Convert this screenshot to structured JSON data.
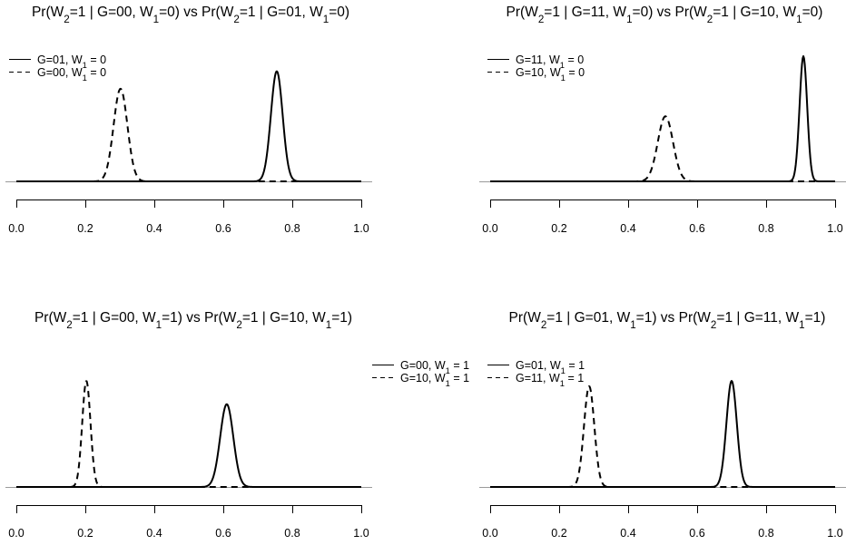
{
  "chart_data": [
    {
      "type": "line",
      "title_parts": [
        {
          "t": "Pr(W"
        },
        {
          "t": "2",
          "sub": true
        },
        {
          "t": "=1 | G=00, W"
        },
        {
          "t": "1",
          "sub": true
        },
        {
          "t": "=0) vs Pr(W"
        },
        {
          "t": "2",
          "sub": true
        },
        {
          "t": "=1 | G=01, W"
        },
        {
          "t": "1",
          "sub": true
        },
        {
          "t": "=0)"
        }
      ],
      "xlim": [
        0,
        1
      ],
      "x_ticks": [
        "0.0",
        "0.2",
        "0.4",
        "0.6",
        "0.8",
        "1.0"
      ],
      "legend_position": "top-left",
      "legend": [
        {
          "style": "solid",
          "parts": [
            {
              "t": "G=01, W"
            },
            {
              "t": "1",
              "sub": true
            },
            {
              "t": " = 0"
            }
          ]
        },
        {
          "style": "dashed",
          "parts": [
            {
              "t": "G=00, W"
            },
            {
              "t": "1",
              "sub": true
            },
            {
              "t": " = 0"
            }
          ]
        }
      ],
      "series": [
        {
          "style": "solid",
          "center": 0.755,
          "sd": 0.017,
          "peak": 0.88
        },
        {
          "style": "dashed",
          "center": 0.302,
          "sd": 0.02,
          "peak": 0.74
        }
      ]
    },
    {
      "type": "line",
      "title_parts": [
        {
          "t": "Pr(W"
        },
        {
          "t": "2",
          "sub": true
        },
        {
          "t": "=1 | G=11, W"
        },
        {
          "t": "1",
          "sub": true
        },
        {
          "t": "=0) vs Pr(W"
        },
        {
          "t": "2",
          "sub": true
        },
        {
          "t": "=1 | G=10, W"
        },
        {
          "t": "1",
          "sub": true
        },
        {
          "t": "=0)"
        }
      ],
      "xlim": [
        0,
        1
      ],
      "x_ticks": [
        "0.0",
        "0.2",
        "0.4",
        "0.6",
        "0.8",
        "1.0"
      ],
      "legend_position": "top-left",
      "legend": [
        {
          "style": "solid",
          "parts": [
            {
              "t": "G=11, W"
            },
            {
              "t": "1",
              "sub": true
            },
            {
              "t": " = 0"
            }
          ]
        },
        {
          "style": "dashed",
          "parts": [
            {
              "t": "G=10, W"
            },
            {
              "t": "1",
              "sub": true
            },
            {
              "t": " = 0"
            }
          ]
        }
      ],
      "series": [
        {
          "style": "solid",
          "center": 0.908,
          "sd": 0.011,
          "peak": 1.0
        },
        {
          "style": "dashed",
          "center": 0.508,
          "sd": 0.022,
          "peak": 0.52
        }
      ]
    },
    {
      "type": "line",
      "title_parts": [
        {
          "t": "Pr(W"
        },
        {
          "t": "2",
          "sub": true
        },
        {
          "t": "=1 | G=00, W"
        },
        {
          "t": "1",
          "sub": true
        },
        {
          "t": "=1) vs Pr(W"
        },
        {
          "t": "2",
          "sub": true
        },
        {
          "t": "=1 | G=10, W"
        },
        {
          "t": "1",
          "sub": true
        },
        {
          "t": "=1)"
        }
      ],
      "xlim": [
        0,
        1
      ],
      "x_ticks": [
        "0.0",
        "0.2",
        "0.4",
        "0.6",
        "0.8",
        "1.0"
      ],
      "legend_position": "top-right",
      "legend": [
        {
          "style": "solid",
          "parts": [
            {
              "t": "G=00, W"
            },
            {
              "t": "1",
              "sub": true
            },
            {
              "t": " = 1"
            }
          ]
        },
        {
          "style": "dashed",
          "parts": [
            {
              "t": "G=10, W"
            },
            {
              "t": "1",
              "sub": true
            },
            {
              "t": " = 1"
            }
          ]
        }
      ],
      "series": [
        {
          "style": "solid",
          "center": 0.61,
          "sd": 0.019,
          "peak": 0.78
        },
        {
          "style": "dashed",
          "center": 0.203,
          "sd": 0.012,
          "peak": 1.0
        }
      ]
    },
    {
      "type": "line",
      "title_parts": [
        {
          "t": "Pr(W"
        },
        {
          "t": "2",
          "sub": true
        },
        {
          "t": "=1 | G=01, W"
        },
        {
          "t": "1",
          "sub": true
        },
        {
          "t": "=1) vs Pr(W"
        },
        {
          "t": "2",
          "sub": true
        },
        {
          "t": "=1 | G=11, W"
        },
        {
          "t": "1",
          "sub": true
        },
        {
          "t": "=1)"
        }
      ],
      "xlim": [
        0,
        1
      ],
      "x_ticks": [
        "0.0",
        "0.2",
        "0.4",
        "0.6",
        "0.8",
        "1.0"
      ],
      "legend_position": "top-left",
      "legend": [
        {
          "style": "solid",
          "parts": [
            {
              "t": "G=01, W"
            },
            {
              "t": "1",
              "sub": true
            },
            {
              "t": " = 1"
            }
          ]
        },
        {
          "style": "dashed",
          "parts": [
            {
              "t": "G=11, W"
            },
            {
              "t": "1",
              "sub": true
            },
            {
              "t": " = 1"
            }
          ]
        }
      ],
      "series": [
        {
          "style": "solid",
          "center": 0.7,
          "sd": 0.015,
          "peak": 1.0
        },
        {
          "style": "dashed",
          "center": 0.287,
          "sd": 0.015,
          "peak": 0.95
        }
      ]
    }
  ]
}
